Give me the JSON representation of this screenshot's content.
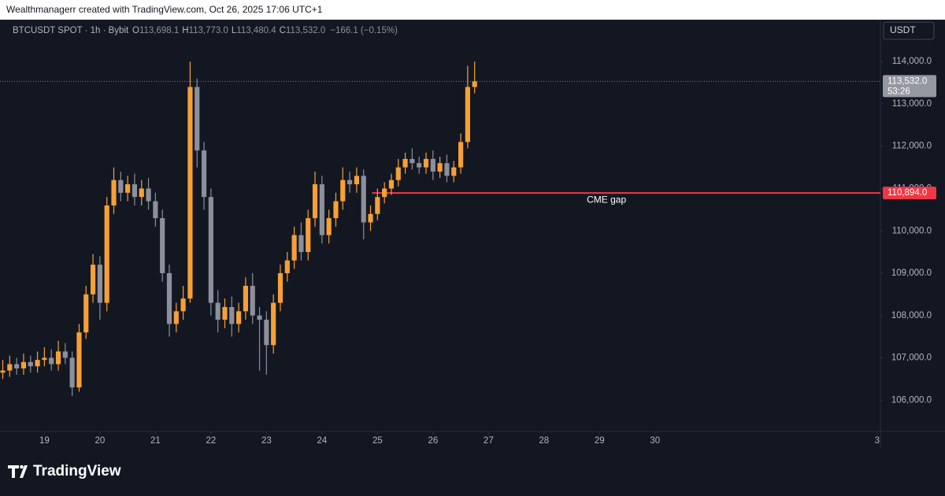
{
  "chart_data": {
    "type": "candlestick",
    "caption": "Wealthmanagerr created with TradingView.com, Oct 26, 2025 17:06 UTC+1",
    "symbol": "BTCUSDT SPOT · 1h · Bybit",
    "ohlc_legend": [
      {
        "key": "O",
        "value": "113,698.1"
      },
      {
        "key": "H",
        "value": "113,773.0"
      },
      {
        "key": "L",
        "value": "113,480.4"
      },
      {
        "key": "C",
        "value": "113,532.0"
      }
    ],
    "change": "−166.1 (−0.15%)",
    "currency": "USDT",
    "brand": "TradingView",
    "up_color": "#f7a035",
    "down_color": "#8b909c",
    "x": [
      18.25,
      18.375,
      18.5,
      18.625,
      18.75,
      18.875,
      19,
      19.125,
      19.25,
      19.375,
      19.5,
      19.625,
      19.75,
      19.875,
      20,
      20.125,
      20.25,
      20.375,
      20.5,
      20.625,
      20.75,
      20.875,
      21,
      21.125,
      21.25,
      21.375,
      21.5,
      21.625,
      21.75,
      21.875,
      22,
      22.125,
      22.25,
      22.375,
      22.5,
      22.625,
      22.75,
      22.875,
      23,
      23.125,
      23.25,
      23.375,
      23.5,
      23.625,
      23.75,
      23.875,
      24,
      24.125,
      24.25,
      24.375,
      24.5,
      24.625,
      24.75,
      24.875,
      25,
      25.125,
      25.25,
      25.375,
      25.5,
      25.625,
      25.75,
      25.875,
      26,
      26.125,
      26.25,
      26.375,
      26.5,
      26.625,
      26.75
    ],
    "open": [
      106650,
      106700,
      106850,
      106750,
      106900,
      106800,
      106950,
      107000,
      106850,
      107150,
      107000,
      106300,
      107600,
      108500,
      109200,
      108300,
      110600,
      111200,
      110900,
      111100,
      110800,
      111000,
      110700,
      110300,
      109000,
      107800,
      108100,
      108400,
      113400,
      111900,
      110800,
      108300,
      107900,
      108200,
      107800,
      108100,
      108700,
      108000,
      107900,
      107300,
      108300,
      109000,
      109300,
      109900,
      109500,
      110300,
      111100,
      109900,
      110300,
      110700,
      111200,
      111100,
      111300,
      110200,
      110400,
      110800,
      111000,
      111200,
      111500,
      111700,
      111600,
      111500,
      111700,
      111400,
      111600,
      111300,
      111500,
      112100,
      113400
    ],
    "high": [
      106950,
      107050,
      107000,
      107100,
      107050,
      107150,
      107250,
      107200,
      107400,
      107350,
      107150,
      107800,
      108700,
      109450,
      109400,
      110800,
      111500,
      111400,
      111300,
      111350,
      111200,
      111250,
      110900,
      110500,
      109200,
      108300,
      108700,
      114000,
      113600,
      112100,
      111000,
      108600,
      108400,
      108450,
      108300,
      108900,
      109000,
      108200,
      108100,
      108500,
      109200,
      109500,
      110100,
      110200,
      110500,
      111400,
      111300,
      110500,
      110900,
      111500,
      111400,
      111500,
      111450,
      110600,
      111000,
      111150,
      111350,
      111700,
      111850,
      111950,
      111750,
      111850,
      111900,
      111750,
      111800,
      111650,
      112300,
      113900,
      114000
    ],
    "low": [
      106500,
      106550,
      106600,
      106600,
      106650,
      106650,
      106800,
      106700,
      106700,
      106850,
      106100,
      106200,
      107450,
      108300,
      107900,
      108100,
      110400,
      110700,
      110700,
      110600,
      110600,
      110500,
      110100,
      108800,
      107500,
      107600,
      107900,
      108300,
      111500,
      110500,
      108000,
      107600,
      107700,
      107500,
      107600,
      107900,
      107800,
      106700,
      106600,
      107100,
      108100,
      108800,
      109100,
      109300,
      109300,
      110100,
      109700,
      109700,
      110100,
      110500,
      110900,
      110900,
      109800,
      110000,
      110250,
      110650,
      110850,
      111050,
      111350,
      111450,
      111350,
      111350,
      111200,
      111250,
      111150,
      111150,
      111350,
      111950,
      113250
    ],
    "close": [
      106700,
      106850,
      106750,
      106900,
      106800,
      106950,
      107000,
      106850,
      107150,
      107000,
      106300,
      107600,
      108500,
      109200,
      108300,
      110600,
      111200,
      110900,
      111100,
      110800,
      111000,
      110700,
      110300,
      109000,
      107800,
      108100,
      108400,
      113400,
      111900,
      110800,
      108300,
      107900,
      108200,
      107800,
      108100,
      108700,
      108000,
      107900,
      107300,
      108300,
      109000,
      109300,
      109900,
      109500,
      110300,
      111100,
      109900,
      110300,
      110700,
      111200,
      111100,
      111300,
      110200,
      110400,
      110800,
      111000,
      111200,
      111500,
      111700,
      111600,
      111500,
      111700,
      111400,
      111600,
      111300,
      111500,
      112100,
      113400,
      113532
    ],
    "xlim": [
      18.2,
      34.06
    ],
    "xticks": [
      19,
      20,
      21,
      22,
      23,
      24,
      25,
      26,
      27,
      28,
      29,
      30,
      {
        "value": 34,
        "label": "3"
      }
    ],
    "ylim": [
      105260,
      114990
    ],
    "yticks": [
      {
        "value": 106000,
        "label": "106,000.0"
      },
      {
        "value": 107000,
        "label": "107,000.0"
      },
      {
        "value": 108000,
        "label": "108,000.0"
      },
      {
        "value": 109000,
        "label": "109,000.0"
      },
      {
        "value": 110000,
        "label": "110,000.0"
      },
      {
        "value": 111000,
        "label": "111,000.0"
      },
      {
        "value": 112000,
        "label": "112,000.0"
      },
      {
        "value": 113000,
        "label": "113,000.0"
      },
      {
        "value": 114000,
        "label": "114,000.0"
      }
    ],
    "last_price": {
      "value": 113532,
      "label": "113,532.0",
      "countdown": "53:26"
    },
    "cme_gap": {
      "value": 110894,
      "label": "110,894.0",
      "text": "CME gap",
      "start": 24.9,
      "color": "#f23645"
    }
  }
}
